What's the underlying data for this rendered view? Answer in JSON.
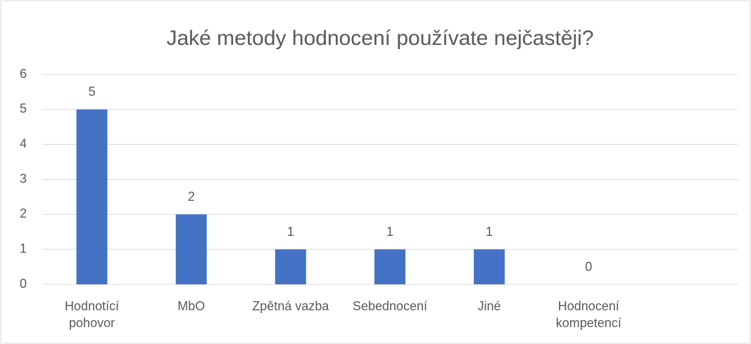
{
  "chart_data": {
    "type": "bar",
    "title": "Jaké metody hodnocení používate nejčastěji?",
    "categories": [
      "Hodnotící pohovor",
      "MbO",
      "Zpětná vazba",
      "Sebednocení",
      "Jiné",
      "Hodnocení kompetencí",
      null
    ],
    "values": [
      5,
      2,
      1,
      1,
      1,
      0,
      null
    ],
    "color": "#4472c4",
    "ylim": [
      0,
      6
    ],
    "yticks": [
      0,
      1,
      2,
      3,
      4,
      5,
      6
    ],
    "grid": true
  }
}
